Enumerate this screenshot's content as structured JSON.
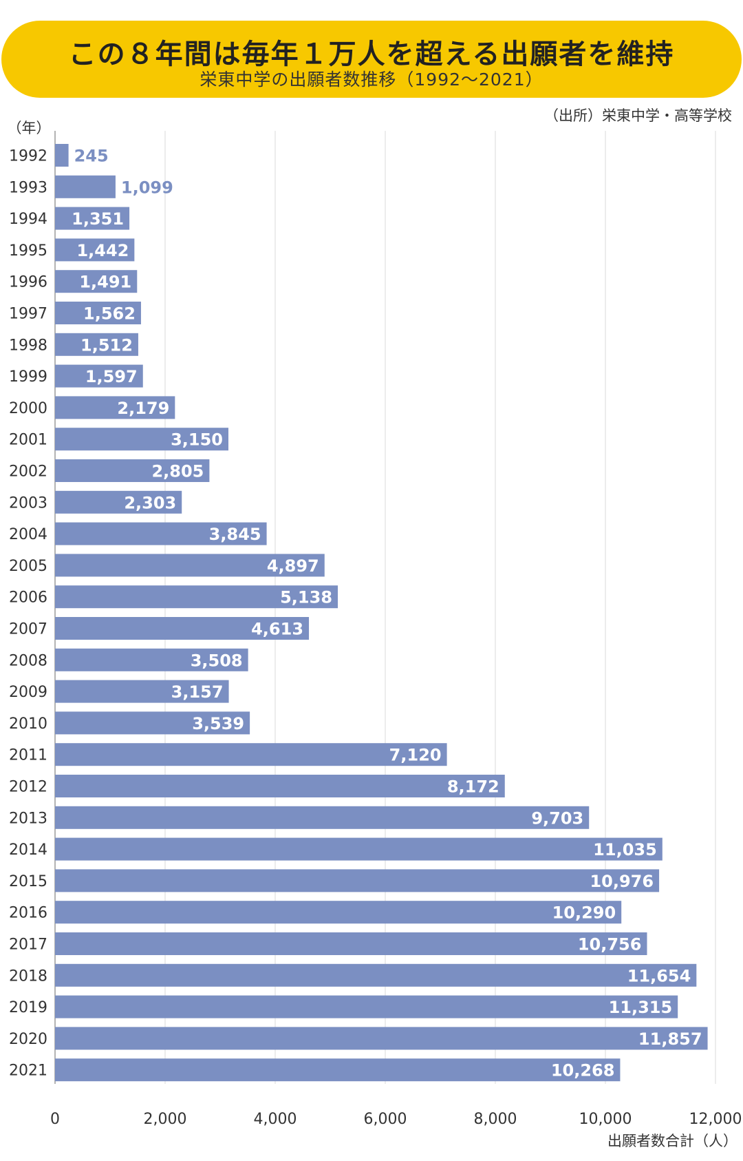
{
  "header": {
    "title": "この８年間は毎年１万人を超える出願者を維持",
    "subtitle": "栄東中学の出願者数推移（1992～2021）",
    "source": "（出所）栄東中学・高等学校"
  },
  "colors": {
    "banner": "#f7c800",
    "bar": "#7b8fc2",
    "inside_label": "#ffffff",
    "outside_label": "#7b8fc2",
    "grid": "#d9d9d9"
  },
  "chart_data": {
    "type": "bar",
    "orientation": "horizontal",
    "title": "栄東中学の出願者数推移（1992～2021）",
    "ylabel": "（年）",
    "xlabel": "出願者数合計（人）",
    "xlim": [
      0,
      12000
    ],
    "xticks": [
      0,
      2000,
      4000,
      6000,
      8000,
      10000,
      12000
    ],
    "xtick_labels": [
      "0",
      "2,000",
      "4,000",
      "6,000",
      "8,000",
      "10,000",
      "12,000"
    ],
    "grid": true,
    "categories": [
      "1992",
      "1993",
      "1994",
      "1995",
      "1996",
      "1997",
      "1998",
      "1999",
      "2000",
      "2001",
      "2002",
      "2003",
      "2004",
      "2005",
      "2006",
      "2007",
      "2008",
      "2009",
      "2010",
      "2011",
      "2012",
      "2013",
      "2014",
      "2015",
      "2016",
      "2017",
      "2018",
      "2019",
      "2020",
      "2021"
    ],
    "values": [
      245,
      1099,
      1351,
      1442,
      1491,
      1562,
      1512,
      1597,
      2179,
      3150,
      2805,
      2303,
      3845,
      4897,
      5138,
      4613,
      3508,
      3157,
      3539,
      7120,
      8172,
      9703,
      11035,
      10976,
      10290,
      10756,
      11654,
      11315,
      11857,
      10268
    ],
    "value_labels": [
      "245",
      "1,099",
      "1,351",
      "1,442",
      "1,491",
      "1,562",
      "1,512",
      "1,597",
      "2,179",
      "3,150",
      "2,805",
      "2,303",
      "3,845",
      "4,897",
      "5,138",
      "4,613",
      "3,508",
      "3,157",
      "3,539",
      "7,120",
      "8,172",
      "9,703",
      "11,035",
      "10,976",
      "10,290",
      "10,756",
      "11,654",
      "11,315",
      "11,857",
      "10,268"
    ]
  }
}
